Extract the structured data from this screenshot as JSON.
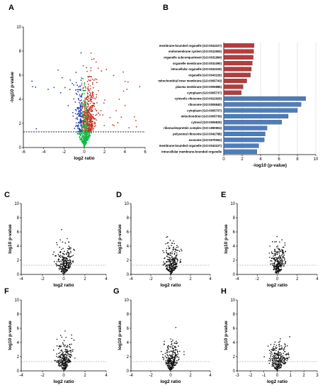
{
  "panels": {
    "A": "A",
    "B": "B",
    "C": "C",
    "D": "D",
    "E": "E",
    "F": "F",
    "G": "G",
    "H": "H"
  },
  "colors": {
    "red_bar": "#b63c3c",
    "blue_bar": "#4a7ec0",
    "up_points": "#c0392b",
    "down_points": "#1f3fbf",
    "neutral_points": "#111111",
    "green_points": "#18b84a"
  },
  "chart_data": [
    {
      "id": "A",
      "type": "scatter",
      "xlabel": "log2 ratio",
      "ylabel": "-log10 p-value",
      "xlim": [
        -6,
        6
      ],
      "ylim": [
        0,
        10
      ],
      "xticks": [
        -6,
        -4,
        -2,
        0,
        2,
        4,
        6
      ],
      "yticks": [
        0,
        2,
        4,
        6,
        8,
        10
      ],
      "threshold_y": 1.3,
      "grid": false,
      "legend": "none"
    },
    {
      "id": "B",
      "type": "bar",
      "orientation": "horizontal",
      "xlabel": "-log10 (p-value)",
      "xlim": [
        0,
        10
      ],
      "xticks": [
        0,
        2,
        4,
        6,
        8,
        10
      ],
      "grid": true,
      "categories": [
        "membrane-bounded organelle (GO:0043227)",
        "endomembrane system (GO:0012505)",
        "organelle subcompartment (GO:0031984)",
        "organelle membrane (GO:0031090)",
        "intracellular organelle (GO:0043229)",
        "organelle (GO:0043226)",
        "mitochondrial inner membrane (GO:0005743)",
        "plasma membrane (GO:0005886)",
        "cytoplasm (GO:0005737)",
        "cytosolic ribosome (GO:0022626)",
        "ribosome (GO:0005840)",
        "cytoplasm (GO:0005737)",
        "mitochondrion (GO:0005739)",
        "cytosol (GO:0005829)",
        "ribonucleoprotein complex (GO:1990904)",
        "polysomal ribosome (GO:0042788)",
        "exosome (GO:0070062)",
        "membrane-bounded organelle (GO:0043227)",
        "intracellular membrane-bounded organelle"
      ],
      "values": [
        3.3,
        3.25,
        3.2,
        3.1,
        3.0,
        2.9,
        2.5,
        2.1,
        1.9,
        8.9,
        8.4,
        8.0,
        7.0,
        6.3,
        4.7,
        4.5,
        4.4,
        3.8,
        3.6
      ],
      "bar_colors": [
        "red",
        "red",
        "red",
        "red",
        "red",
        "red",
        "red",
        "red",
        "red",
        "blue",
        "blue",
        "blue",
        "blue",
        "blue",
        "blue",
        "blue",
        "blue",
        "blue",
        "blue"
      ]
    },
    {
      "id": "C",
      "type": "scatter",
      "xlabel": "log2 ratio",
      "ylabel": "log10 p-value",
      "xlim": [
        -4,
        4
      ],
      "ylim": [
        0,
        10
      ],
      "xticks": [
        -4,
        -2,
        0,
        2,
        4
      ],
      "yticks": [
        0,
        2,
        4,
        6,
        8,
        10
      ],
      "threshold_y": 1.3
    },
    {
      "id": "D",
      "type": "scatter",
      "xlabel": "log2 ratio",
      "ylabel": "log10 p-value",
      "xlim": [
        -4,
        4
      ],
      "ylim": [
        0,
        10
      ],
      "xticks": [
        -4,
        -2,
        0,
        2,
        4
      ],
      "yticks": [
        0,
        2,
        4,
        6,
        8,
        10
      ],
      "threshold_y": 1.3
    },
    {
      "id": "E",
      "type": "scatter",
      "xlabel": "log2 ratio",
      "ylabel": "log10 p-value",
      "xlim": [
        -4,
        4
      ],
      "ylim": [
        0,
        10
      ],
      "xticks": [
        -4,
        -2,
        0,
        2,
        4
      ],
      "yticks": [
        0,
        2,
        4,
        6,
        8,
        10
      ],
      "threshold_y": 1.3
    },
    {
      "id": "F",
      "type": "scatter",
      "xlabel": "log2 ratio",
      "ylabel": "log10 p-value",
      "xlim": [
        -4,
        4
      ],
      "ylim": [
        0,
        10
      ],
      "xticks": [
        -4,
        -2,
        0,
        2,
        4
      ],
      "yticks": [
        0,
        2,
        4,
        6,
        8,
        10
      ],
      "threshold_y": 1.3
    },
    {
      "id": "G",
      "type": "scatter",
      "xlabel": "log2 ratio",
      "ylabel": "log10 p-value",
      "xlim": [
        -4,
        4
      ],
      "ylim": [
        0,
        10
      ],
      "xticks": [
        -4,
        -2,
        0,
        2,
        4
      ],
      "yticks": [
        0,
        2,
        4,
        6,
        8,
        10
      ],
      "threshold_y": 1.3
    },
    {
      "id": "H",
      "type": "scatter",
      "xlabel": "log2 ratio",
      "ylabel": "log10 p-value",
      "xlim": [
        -3,
        3
      ],
      "ylim": [
        0,
        10
      ],
      "xticks": [
        -3,
        -2,
        -1,
        0,
        1,
        2,
        3
      ],
      "yticks": [
        0,
        2,
        4,
        6,
        8,
        10
      ],
      "threshold_y": 1.3
    }
  ]
}
